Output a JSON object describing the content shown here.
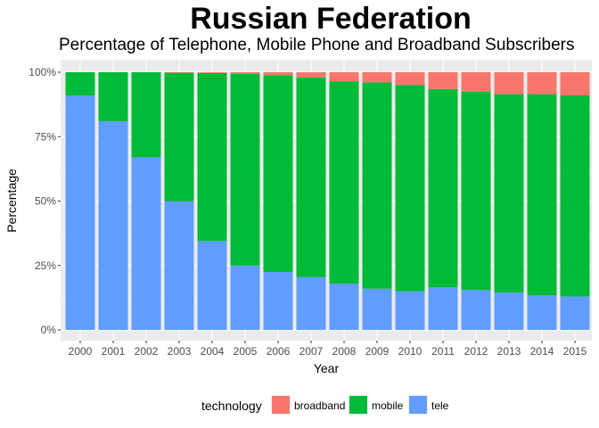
{
  "chart_data": {
    "type": "bar",
    "stacked": "percent",
    "title": "Russian Federation",
    "subtitle": "Percentage of Telephone, Mobile Phone and Broadband Subscribers",
    "xlabel": "Year",
    "ylabel": "Percentage",
    "ylim": [
      0,
      100
    ],
    "yticks": [
      "0%",
      "25%",
      "50%",
      "75%",
      "100%"
    ],
    "categories": [
      "2000",
      "2001",
      "2002",
      "2003",
      "2004",
      "2005",
      "2006",
      "2007",
      "2008",
      "2009",
      "2010",
      "2011",
      "2012",
      "2013",
      "2014",
      "2015"
    ],
    "series": [
      {
        "name": "tele",
        "color": "#619CFF",
        "values": [
          91,
          81,
          67,
          50,
          34.5,
          25,
          22.5,
          20.5,
          18,
          16,
          15,
          16.5,
          15.5,
          14.5,
          13.5,
          13
        ]
      },
      {
        "name": "mobile",
        "color": "#00BA38",
        "values": [
          9,
          19,
          33,
          49.8,
          65.2,
          74.3,
          76.4,
          77.5,
          78.5,
          80,
          80,
          77,
          77,
          77,
          78,
          78
        ]
      },
      {
        "name": "broadband",
        "color": "#F8766D",
        "values": [
          0,
          0,
          0,
          0.2,
          0.3,
          0.7,
          1.1,
          2,
          3.5,
          4,
          5,
          6.5,
          7.5,
          8.5,
          8.5,
          9
        ]
      }
    ],
    "grid": true,
    "legend_position": "bottom",
    "legend": {
      "title": "technology",
      "entries": [
        {
          "label": "broadband",
          "color": "#F8766D"
        },
        {
          "label": "mobile",
          "color": "#00BA38"
        },
        {
          "label": "tele",
          "color": "#619CFF"
        }
      ]
    }
  }
}
